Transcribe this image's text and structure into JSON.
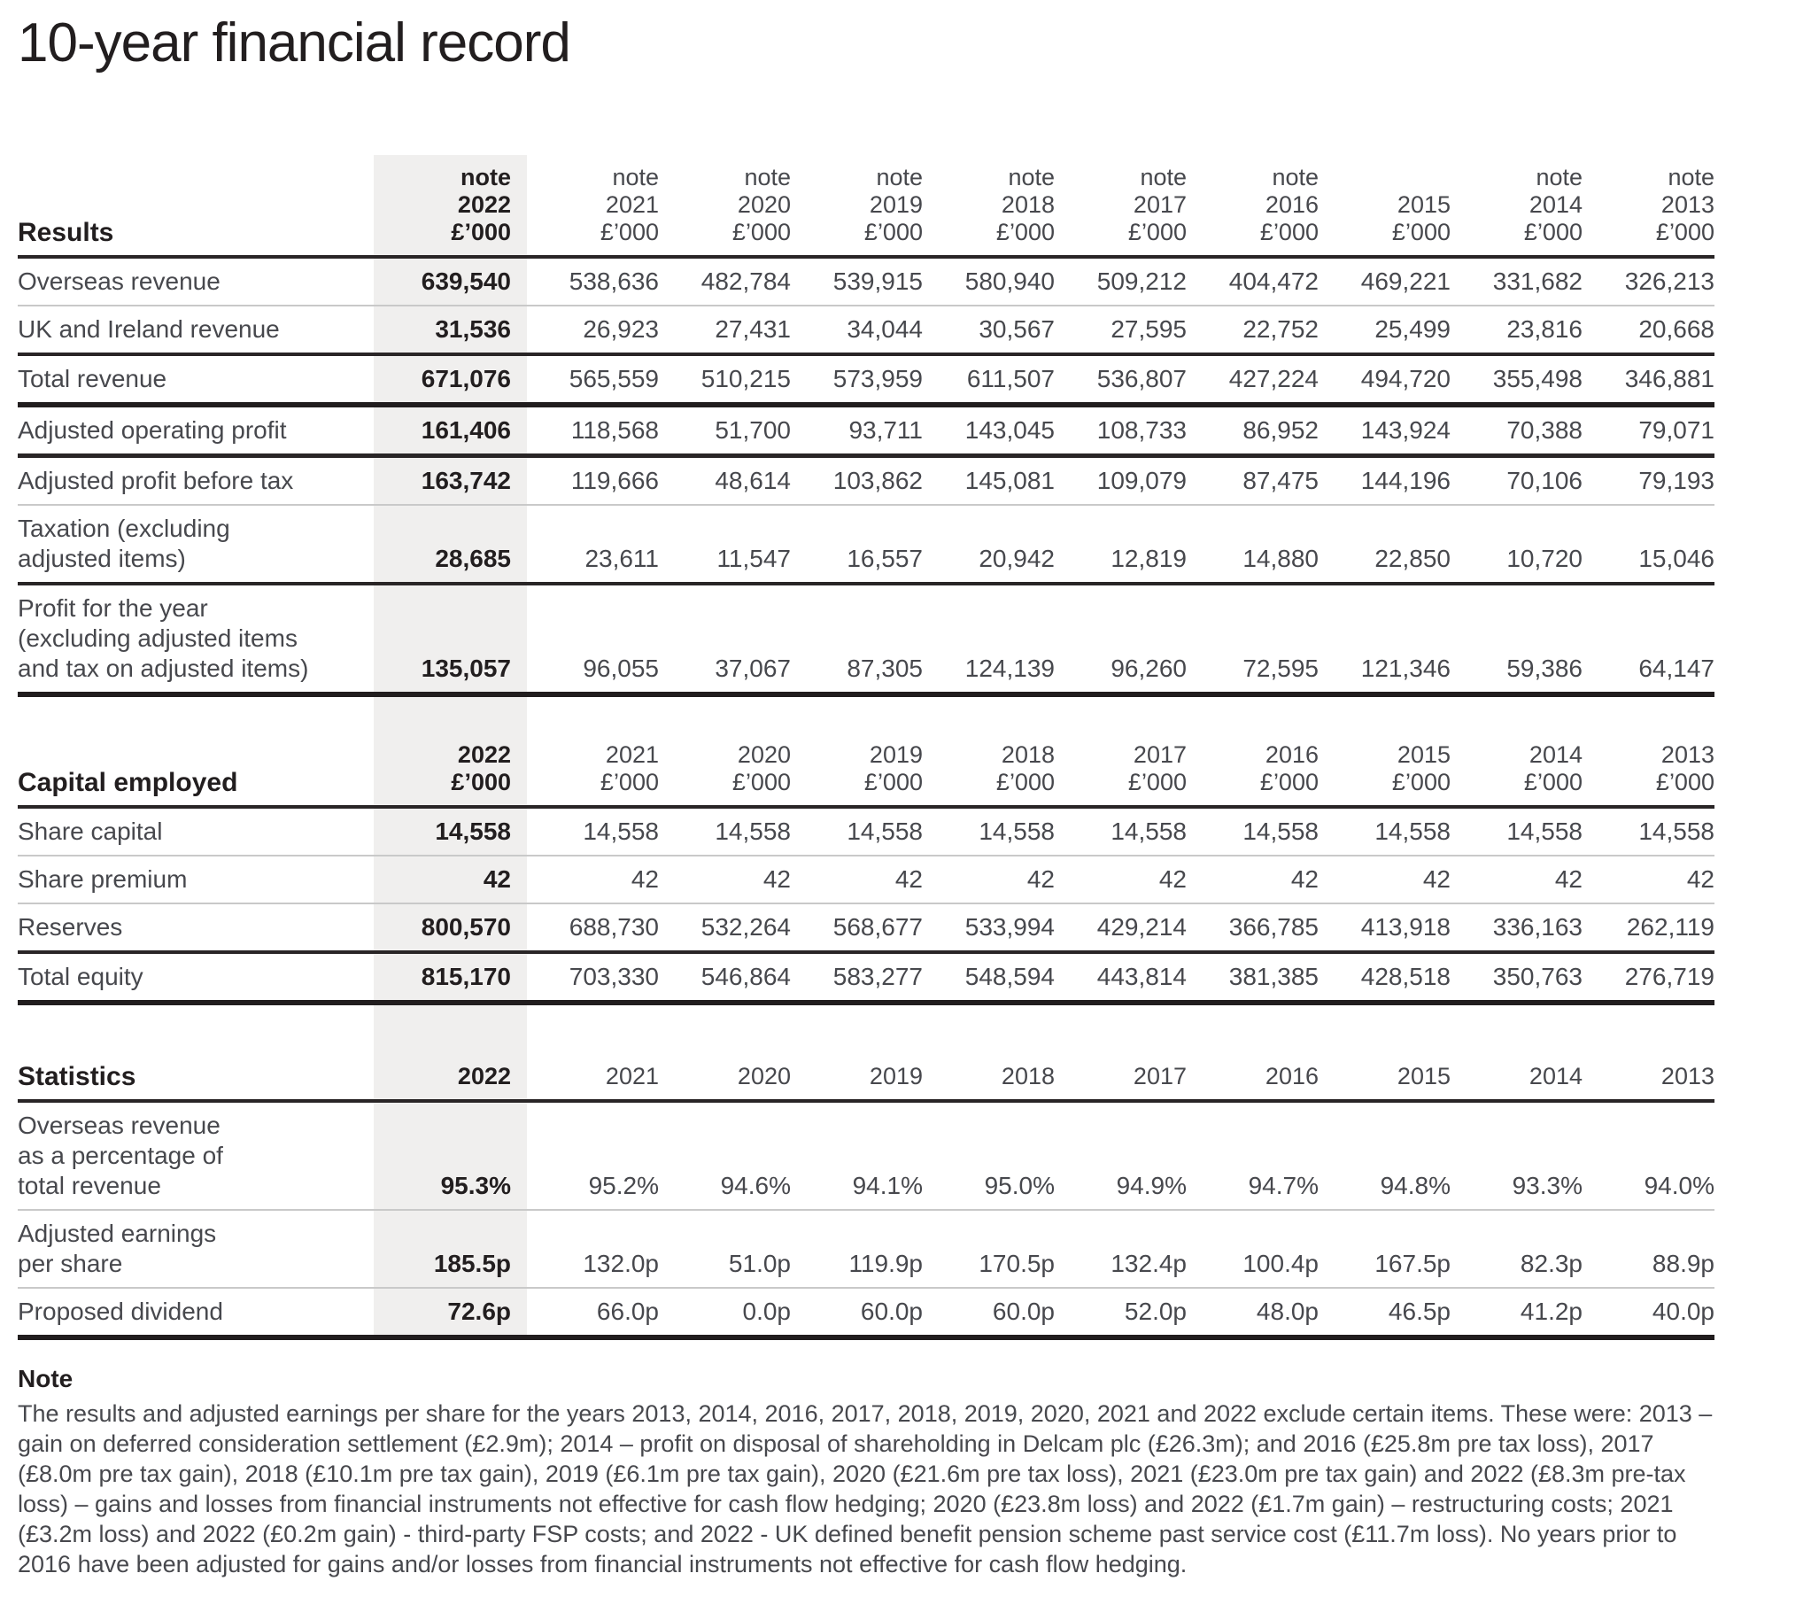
{
  "page": {
    "title": "10-year financial record"
  },
  "colors": {
    "highlight_band": "#f0efee",
    "text_emphasis": "#221e1f",
    "text_regular": "#47484d",
    "rule_light": "#c9c9c9",
    "rule_dark": "#292526"
  },
  "table_common": {
    "note_label": "note",
    "unit_label": "£’000",
    "years": [
      "2022",
      "2021",
      "2020",
      "2019",
      "2018",
      "2017",
      "2016",
      "2015",
      "2014",
      "2013"
    ]
  },
  "sections": [
    {
      "id": "results",
      "label": "Results",
      "header": {
        "show_note": true,
        "show_unit": true,
        "note_years": [
          "2022",
          "2021",
          "2020",
          "2019",
          "2018",
          "2017",
          "2016",
          "2014",
          "2013"
        ]
      },
      "rows": [
        {
          "label": "Overseas revenue",
          "rule": "thin",
          "values": [
            "639,540",
            "538,636",
            "482,784",
            "539,915",
            "580,940",
            "509,212",
            "404,472",
            "469,221",
            "331,682",
            "326,213"
          ]
        },
        {
          "label": "UK and Ireland revenue",
          "rule": "medium",
          "values": [
            "31,536",
            "26,923",
            "27,431",
            "34,044",
            "30,567",
            "27,595",
            "22,752",
            "25,499",
            "23,816",
            "20,668"
          ]
        },
        {
          "label": "Total revenue",
          "rule": "thick",
          "values": [
            "671,076",
            "565,559",
            "510,215",
            "573,959",
            "611,507",
            "536,807",
            "427,224",
            "494,720",
            "355,498",
            "346,881"
          ]
        },
        {
          "label": "Adjusted operating profit",
          "rule": "heavy",
          "values": [
            "161,406",
            "118,568",
            "51,700",
            "93,711",
            "143,045",
            "108,733",
            "86,952",
            "143,924",
            "70,388",
            "79,071"
          ]
        },
        {
          "label": "Adjusted profit before tax",
          "rule": "thin",
          "values": [
            "163,742",
            "119,666",
            "48,614",
            "103,862",
            "145,081",
            "109,079",
            "87,475",
            "144,196",
            "70,106",
            "79,193"
          ]
        },
        {
          "label": "Taxation (excluding\nadjusted items)",
          "rule": "medium",
          "values": [
            "28,685",
            "23,611",
            "11,547",
            "16,557",
            "20,942",
            "12,819",
            "14,880",
            "22,850",
            "10,720",
            "15,046"
          ]
        },
        {
          "label": "Profit for the year\n(excluding adjusted items\nand tax on adjusted items)",
          "rule": "thick",
          "values": [
            "135,057",
            "96,055",
            "37,067",
            "87,305",
            "124,139",
            "96,260",
            "72,595",
            "121,346",
            "59,386",
            "64,147"
          ]
        }
      ]
    },
    {
      "id": "capital-employed",
      "label": "Capital employed",
      "header": {
        "show_note": false,
        "show_unit": true,
        "note_years": []
      },
      "rows": [
        {
          "label": "Share capital",
          "rule": "thin",
          "values": [
            "14,558",
            "14,558",
            "14,558",
            "14,558",
            "14,558",
            "14,558",
            "14,558",
            "14,558",
            "14,558",
            "14,558"
          ]
        },
        {
          "label": "Share premium",
          "rule": "thin",
          "values": [
            "42",
            "42",
            "42",
            "42",
            "42",
            "42",
            "42",
            "42",
            "42",
            "42"
          ]
        },
        {
          "label": "Reserves",
          "rule": "medium",
          "values": [
            "800,570",
            "688,730",
            "532,264",
            "568,677",
            "533,994",
            "429,214",
            "366,785",
            "413,918",
            "336,163",
            "262,119"
          ]
        },
        {
          "label": "Total equity",
          "rule": "thick",
          "values": [
            "815,170",
            "703,330",
            "546,864",
            "583,277",
            "548,594",
            "443,814",
            "381,385",
            "428,518",
            "350,763",
            "276,719"
          ]
        }
      ]
    },
    {
      "id": "statistics",
      "label": "Statistics",
      "header": {
        "show_note": false,
        "show_unit": false,
        "note_years": []
      },
      "rows": [
        {
          "label": "Overseas revenue\nas a percentage of\ntotal revenue",
          "rule": "thin",
          "values": [
            "95.3%",
            "95.2%",
            "94.6%",
            "94.1%",
            "95.0%",
            "94.9%",
            "94.7%",
            "94.8%",
            "93.3%",
            "94.0%"
          ]
        },
        {
          "label": "Adjusted earnings\nper share",
          "rule": "thin",
          "values": [
            "185.5p",
            "132.0p",
            "51.0p",
            "119.9p",
            "170.5p",
            "132.4p",
            "100.4p",
            "167.5p",
            "82.3p",
            "88.9p"
          ]
        },
        {
          "label": "Proposed dividend",
          "rule": "thick",
          "values": [
            "72.6p",
            "66.0p",
            "0.0p",
            "60.0p",
            "60.0p",
            "52.0p",
            "48.0p",
            "46.5p",
            "41.2p",
            "40.0p"
          ]
        }
      ]
    }
  ],
  "note": {
    "heading": "Note",
    "body": "The results and adjusted earnings per share for the years 2013, 2014, 2016, 2017, 2018, 2019, 2020, 2021 and 2022 exclude certain items. These were: 2013 – gain on deferred consideration settlement (£2.9m); 2014 – profit on disposal of shareholding in Delcam plc (£26.3m); and 2016 (£25.8m pre tax loss), 2017 (£8.0m pre tax gain), 2018 (£10.1m pre tax gain), 2019 (£6.1m pre tax gain), 2020 (£21.6m pre tax loss), 2021 (£23.0m pre tax gain) and 2022 (£8.3m pre-tax loss) – gains and losses from financial instruments not effective for cash flow hedging; 2020 (£23.8m loss) and 2022 (£1.7m gain) – restructuring costs; 2021 (£3.2m loss) and 2022 (£0.2m gain) - third-party FSP costs; and 2022 - UK defined benefit pension scheme past service cost (£11.7m loss). No years prior to 2016 have been adjusted for gains and/or losses from financial instruments not effective for cash flow hedging."
  }
}
